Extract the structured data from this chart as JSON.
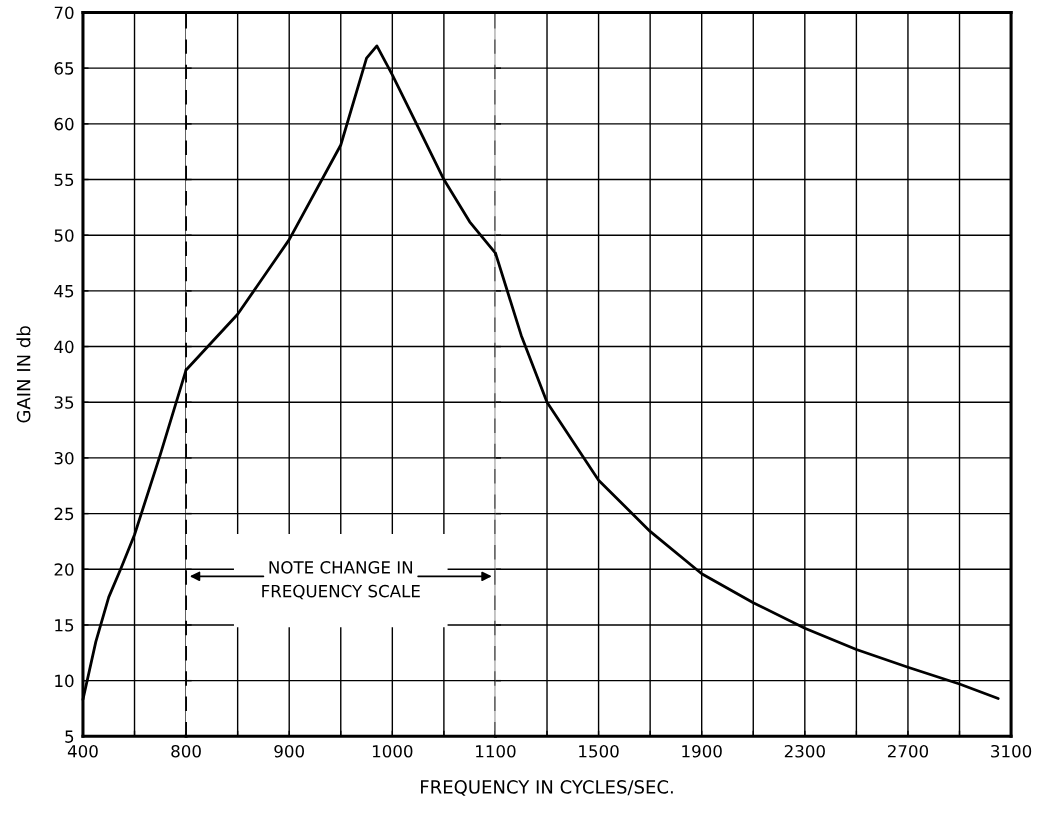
{
  "chart_data": [
    {
      "type": "line",
      "ylabel": "GAIN IN db",
      "x": [
        400,
        450,
        500,
        546,
        600,
        700,
        800
      ],
      "series": [
        {
          "color": "#000000",
          "values": [
            8.3,
            13.5,
            17.5,
            20,
            23.1,
            30.3,
            37.9
          ]
        }
      ],
      "xlim": [
        400,
        800
      ],
      "ylim": [
        5,
        70
      ],
      "xticks": [
        400,
        {
          "value": 600,
          "label": null
        },
        800
      ],
      "yticks": [
        5,
        10,
        15,
        20,
        25,
        30,
        35,
        40,
        45,
        50,
        55,
        60,
        65,
        70
      ],
      "grid": true,
      "marker": "none",
      "line_style": "solid"
    },
    {
      "type": "line",
      "x": [
        800,
        850,
        900,
        950,
        975,
        985,
        1000,
        1025,
        1050,
        1075,
        1100
      ],
      "series": [
        {
          "color": "#000000",
          "values": [
            37.9,
            42.9,
            49.6,
            58.1,
            65.9,
            67,
            64.4,
            59.7,
            55,
            51.2,
            48.4
          ]
        }
      ],
      "xlim": [
        800,
        1100
      ],
      "ylim": [
        5,
        70
      ],
      "xticks": [
        {
          "value": 850,
          "label": null
        },
        900,
        {
          "value": 950,
          "label": null
        },
        1000,
        {
          "value": 1050,
          "label": null
        },
        1100
      ],
      "yticks": [
        5,
        10,
        15,
        20,
        25,
        30,
        35,
        40,
        45,
        50,
        55,
        60,
        65,
        70
      ],
      "ref_lines": [
        {
          "axis": "x",
          "value": 800,
          "line_style": "dashed",
          "color": "#000000"
        },
        {
          "axis": "x",
          "value": 1100,
          "line_style": "dashed",
          "color": "#000000"
        }
      ],
      "annotations": [
        "NOTE CHANGE IN\nFREQUENCY SCALE"
      ],
      "tick_labels": "x",
      "grid": true,
      "marker": "none",
      "line_style": "solid"
    },
    {
      "type": "line",
      "x": [
        1100,
        1200,
        1300,
        1500,
        1700,
        1900,
        2100,
        2300,
        2500,
        2700,
        2900,
        3050
      ],
      "series": [
        {
          "color": "#000000",
          "values": [
            48.4,
            41,
            35,
            28,
            23.4,
            19.6,
            17,
            14.7,
            12.8,
            11.2,
            9.7,
            8.4
          ]
        }
      ],
      "xlim": [
        1100,
        3100
      ],
      "ylim": [
        5,
        70
      ],
      "xticks": [
        {
          "value": 1300,
          "label": null
        },
        1500,
        {
          "value": 1700,
          "label": null
        },
        1900,
        {
          "value": 2100,
          "label": null
        },
        2300,
        {
          "value": 2500,
          "label": null
        },
        2700,
        {
          "value": 2900,
          "label": null
        },
        3100
      ],
      "yticks": [
        5,
        10,
        15,
        20,
        25,
        30,
        35,
        40,
        45,
        50,
        55,
        60,
        65,
        70
      ],
      "xlabel": "FREQUENCY IN CYCLES/SEC.",
      "tick_labels": "x",
      "grid": true,
      "marker": "none",
      "line_style": "solid"
    }
  ]
}
